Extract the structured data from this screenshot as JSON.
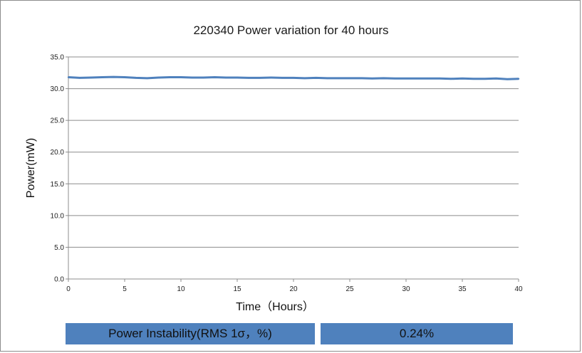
{
  "chart_data": {
    "type": "line",
    "title": "220340 Power variation for 40 hours",
    "xlabel": "Time（Hours）",
    "ylabel": "Power(mW)",
    "xlim": [
      0,
      40
    ],
    "ylim": [
      0,
      35
    ],
    "x_ticks": [
      "0",
      "5",
      "10",
      "15",
      "20",
      "25",
      "30",
      "35",
      "40"
    ],
    "y_ticks": [
      "0.0",
      "5.0",
      "10.0",
      "15.0",
      "20.0",
      "25.0",
      "30.0",
      "35.0"
    ],
    "grid": "horizontal",
    "series": [
      {
        "color": "#4f81bd",
        "x": [
          0,
          1,
          2,
          3,
          4,
          5,
          6,
          7,
          8,
          9,
          10,
          11,
          12,
          13,
          14,
          15,
          16,
          17,
          18,
          19,
          20,
          21,
          22,
          23,
          24,
          25,
          26,
          27,
          28,
          29,
          30,
          31,
          32,
          33,
          34,
          35,
          36,
          37,
          38,
          39,
          40
        ],
        "y": [
          31.8,
          31.7,
          31.75,
          31.8,
          31.85,
          31.8,
          31.7,
          31.65,
          31.75,
          31.8,
          31.8,
          31.75,
          31.75,
          31.8,
          31.75,
          31.75,
          31.7,
          31.7,
          31.75,
          31.7,
          31.7,
          31.65,
          31.7,
          31.65,
          31.65,
          31.65,
          31.65,
          31.6,
          31.65,
          31.6,
          31.6,
          31.6,
          31.6,
          31.6,
          31.55,
          31.6,
          31.55,
          31.55,
          31.6,
          31.5,
          31.55
        ]
      }
    ]
  },
  "stats": {
    "label": "Power Instability(RMS 1σ，%)",
    "value": "0.24%"
  }
}
